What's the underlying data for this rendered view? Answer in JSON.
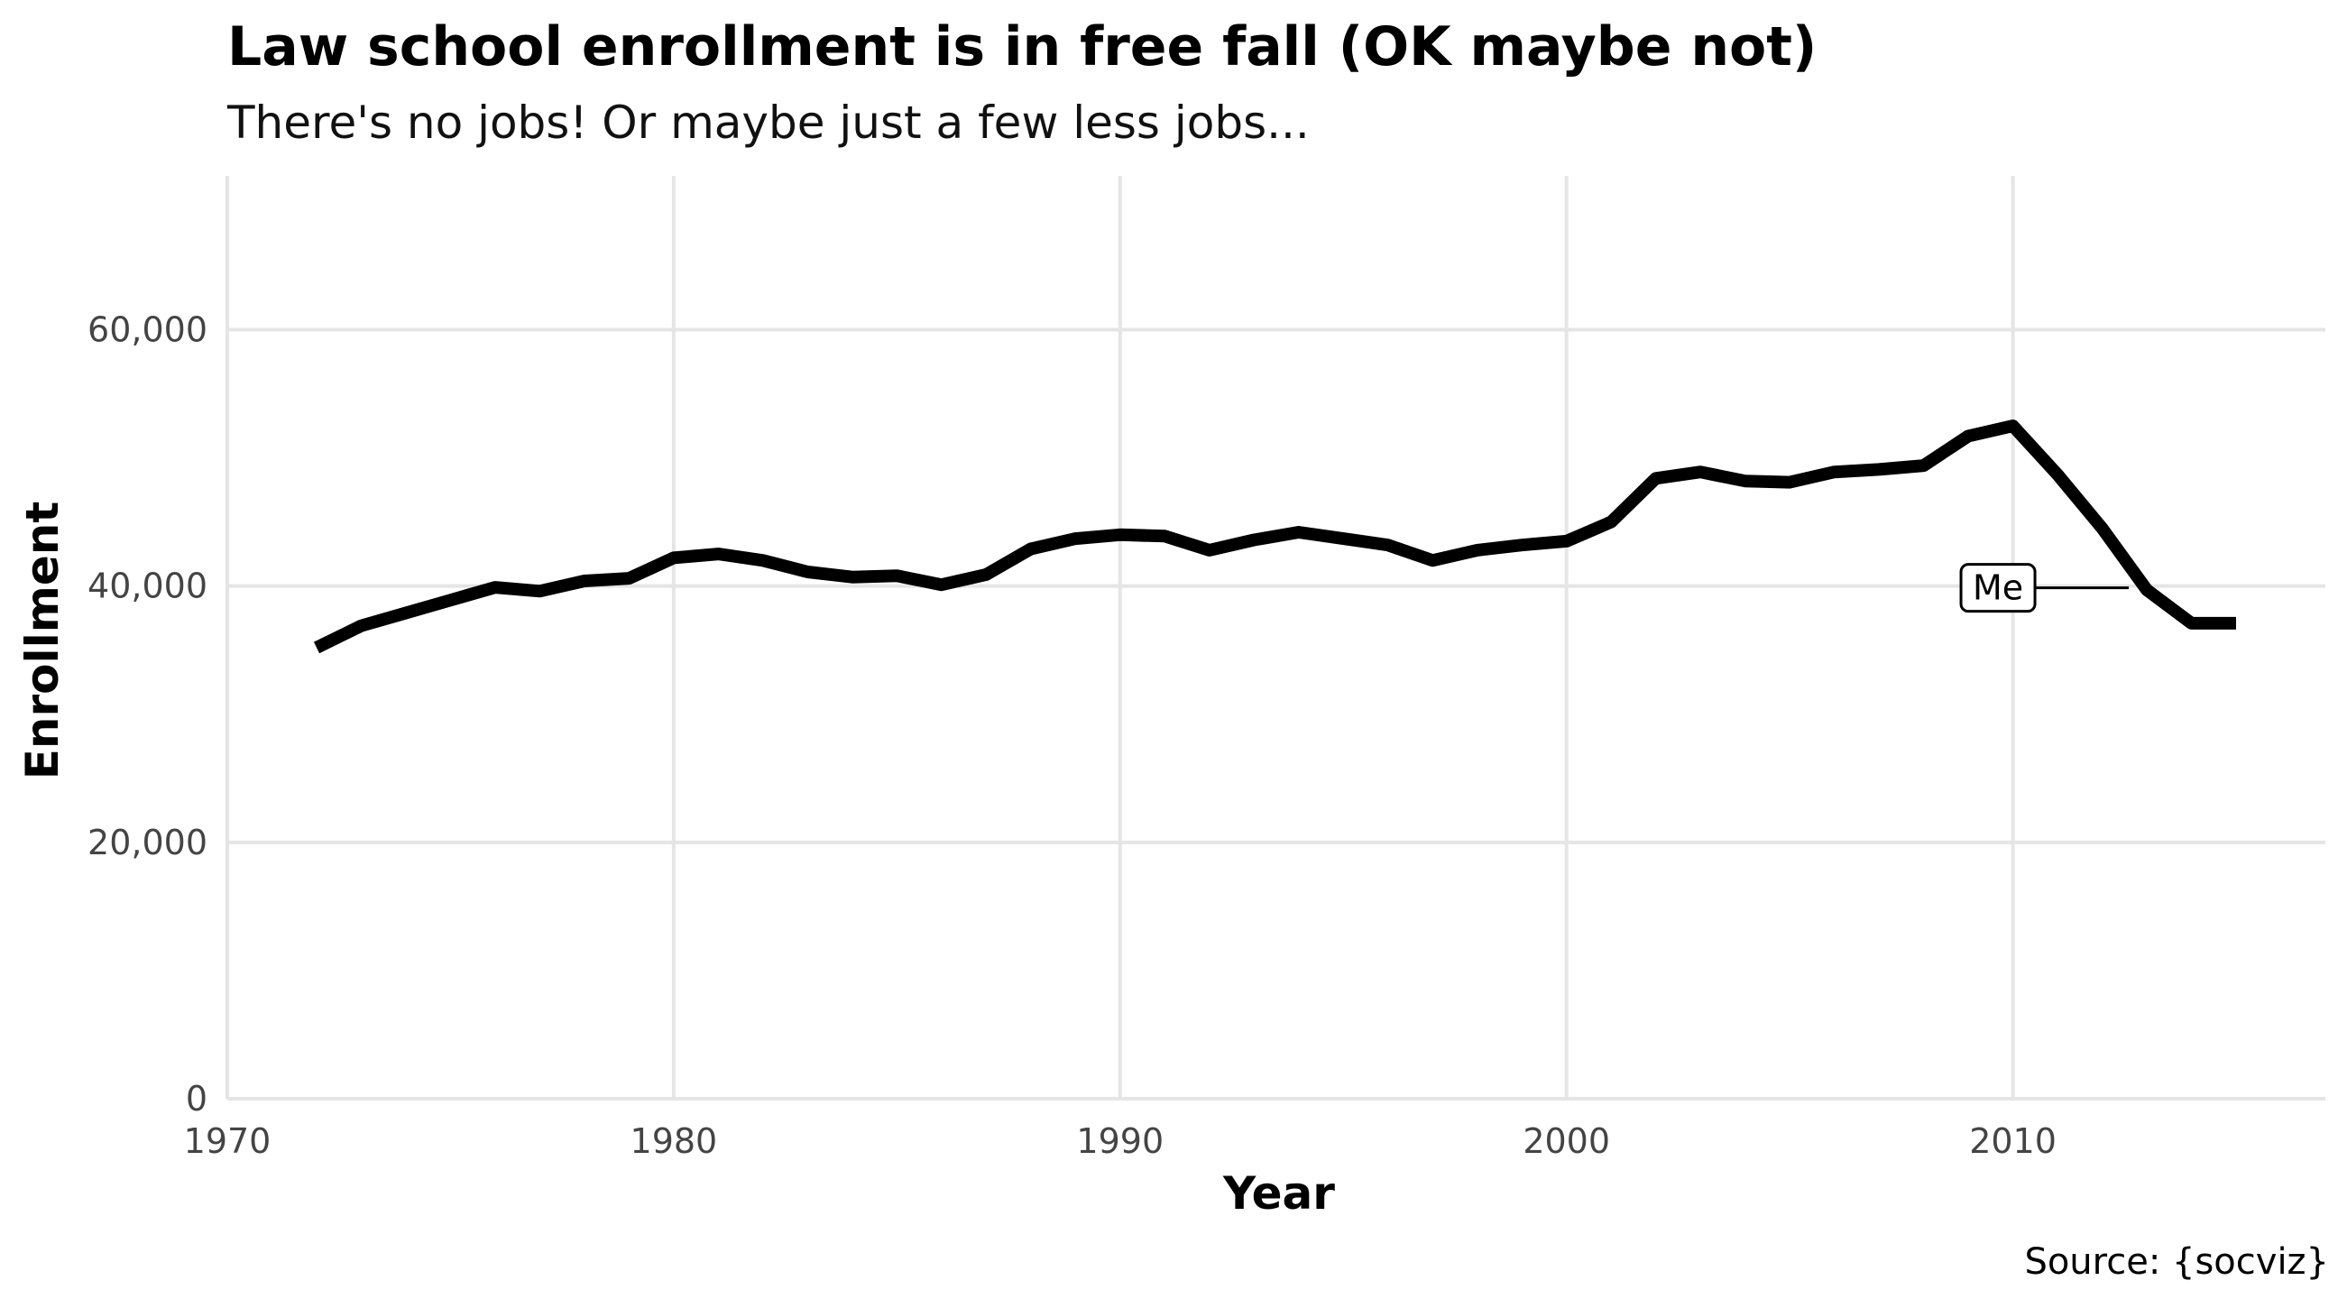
{
  "chart_data": {
    "type": "line",
    "title": "Law school enrollment is in free fall (OK maybe not)",
    "subtitle": "There's no jobs! Or maybe just a few less jobs...",
    "xlabel": "Year",
    "ylabel": "Enrollment",
    "caption": "Source: {socviz}",
    "xlim": [
      1970,
      2017
    ],
    "ylim": [
      0,
      72000
    ],
    "x_ticks": [
      1970,
      1980,
      1990,
      2000,
      2010
    ],
    "y_ticks": [
      0,
      20000,
      40000,
      60000
    ],
    "y_tick_labels": [
      "0",
      "20,000",
      "40,000",
      "60,000"
    ],
    "x_tick_labels": [
      "1970",
      "1980",
      "1990",
      "2000",
      "2010"
    ],
    "grid": true,
    "line_color": "#000000",
    "series": [
      {
        "x": [
          1972,
          1973,
          1974,
          1975,
          1976,
          1977,
          1978,
          1979,
          1980,
          1981,
          1982,
          1983,
          1984,
          1985,
          1986,
          1987,
          1988,
          1989,
          1990,
          1991,
          1992,
          1993,
          1994,
          1995,
          1996,
          1997,
          1998,
          1999,
          2000,
          2001,
          2002,
          2003,
          2004,
          2005,
          2006,
          2007,
          2008,
          2009,
          2010,
          2011,
          2012,
          2013,
          2014,
          2015
        ],
        "values": [
          35200,
          36900,
          37900,
          38900,
          39900,
          39600,
          40400,
          40600,
          42200,
          42500,
          42000,
          41100,
          40700,
          40800,
          40100,
          40900,
          42900,
          43700,
          44000,
          43900,
          42800,
          43600,
          44200,
          43700,
          43200,
          42000,
          42800,
          43200,
          43500,
          45000,
          48400,
          48900,
          48200,
          48100,
          48900,
          49100,
          49400,
          51700,
          52500,
          48700,
          44500,
          39700,
          37100,
          37100
        ]
      }
    ],
    "annotations": [
      {
        "label": "Me",
        "x": 2013,
        "y": 40000
      }
    ]
  }
}
